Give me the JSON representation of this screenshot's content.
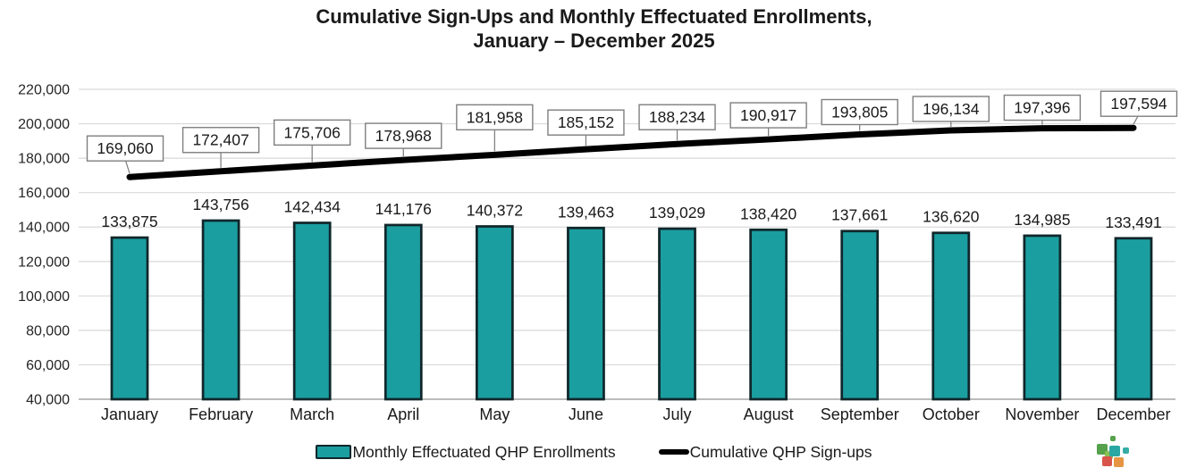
{
  "title": {
    "line1": "Cumulative Sign-Ups and Monthly Effectuated Enrollments,",
    "line2": "January – December 2025"
  },
  "chart_data": {
    "type": "bar",
    "categories": [
      "January",
      "February",
      "March",
      "April",
      "May",
      "June",
      "July",
      "August",
      "September",
      "October",
      "November",
      "December"
    ],
    "series": [
      {
        "name": "Monthly Effectuated QHP Enrollments",
        "type": "bar",
        "color": "#1B9EA0",
        "border_color": "#10272B",
        "values": [
          133875,
          143756,
          142434,
          141176,
          140372,
          139463,
          139029,
          138420,
          137661,
          136620,
          134985,
          133491
        ]
      },
      {
        "name": "Cumulative QHP Sign-ups",
        "type": "line",
        "color": "#000000",
        "values": [
          169060,
          172407,
          175706,
          178968,
          181958,
          185152,
          188234,
          190917,
          193805,
          196134,
          197396,
          197594
        ]
      }
    ],
    "y_axis": {
      "min": 40000,
      "max": 220000,
      "step": 20000,
      "tick_labels": [
        "220,000",
        "200,000",
        "180,000",
        "160,000",
        "140,000",
        "120,000",
        "100,000",
        "80,000",
        "60,000",
        "40,000"
      ]
    },
    "grid": true,
    "legend_position": "bottom",
    "data_labels": true
  },
  "colors": {
    "gridline": "#D9D9D9",
    "axis_line": "#A6A6A6",
    "callout_border": "#7F7F7F",
    "callout_fill": "#FFFFFF"
  },
  "logo": {
    "description": "pixel-squares-logo",
    "colors": [
      "#55A14C",
      "#29A7A3",
      "#35ADA6",
      "#8CBE56",
      "#D9544A",
      "#E69643"
    ]
  }
}
